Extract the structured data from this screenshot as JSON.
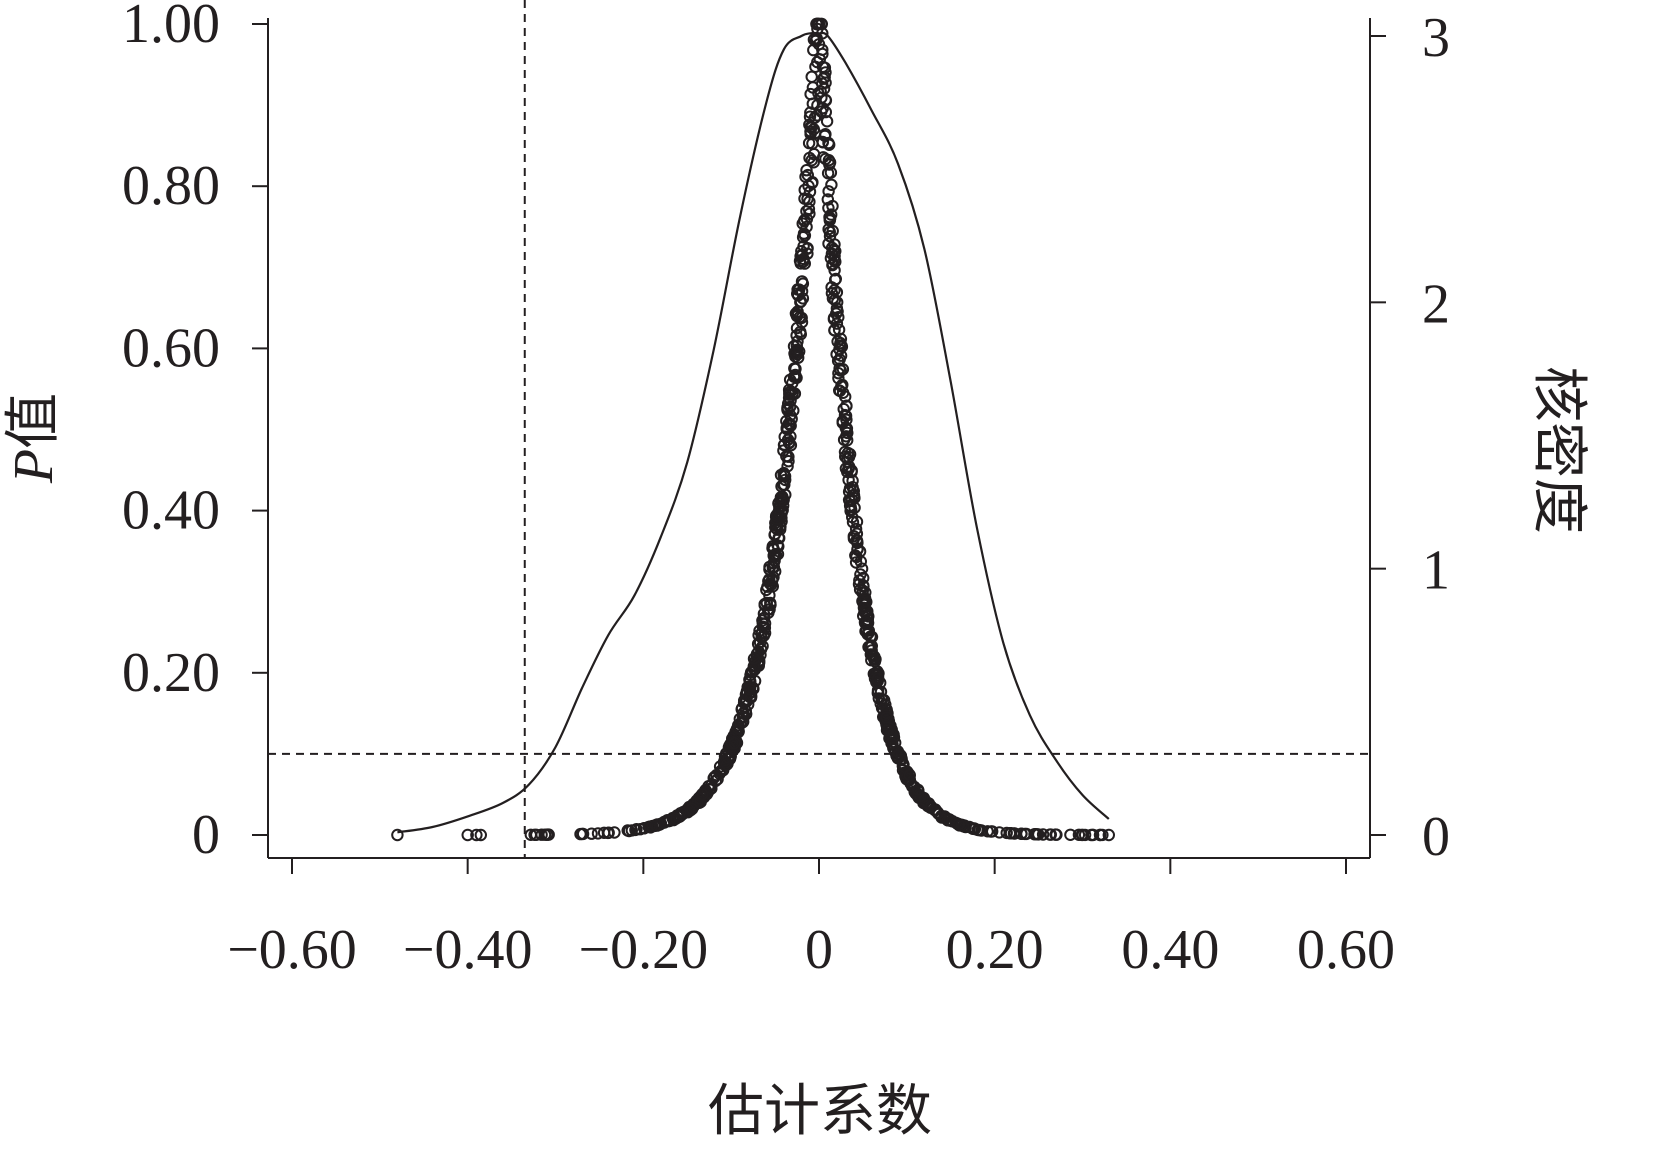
{
  "chart_data": {
    "type": "scatter",
    "xlabel": "估计系数",
    "ylabel_left": "P值",
    "ylabel_left_prefix": "P",
    "ylabel_left_suffix": "值",
    "ylabel_right": "核密度",
    "xlim": [
      -0.625,
      0.625
    ],
    "ylim_left": [
      -0.025,
      1.025
    ],
    "ylim_right": [
      -0.077,
      3.077
    ],
    "x_ticks": [
      -0.6,
      -0.4,
      -0.2,
      0,
      0.2,
      0.4,
      0.6
    ],
    "x_tick_labels": [
      "−0.60",
      "−0.40",
      "−0.20",
      "0",
      "0.20",
      "0.40",
      "0.60"
    ],
    "y_left_ticks": [
      0,
      0.2,
      0.4,
      0.6,
      0.8,
      1.0
    ],
    "y_left_tick_labels": [
      "0",
      "0.20",
      "0.40",
      "0.60",
      "0.80",
      "1.00"
    ],
    "y_right_ticks": [
      0,
      1,
      2,
      3
    ],
    "y_right_tick_labels": [
      "0",
      "1",
      "2",
      "3"
    ],
    "reference_lines": {
      "vertical_x": -0.335,
      "horizontal_p": 0.1
    },
    "series": [
      {
        "kind": "kde",
        "axis": "right",
        "x": [
          -0.48,
          -0.44,
          -0.4,
          -0.36,
          -0.33,
          -0.3,
          -0.27,
          -0.24,
          -0.21,
          -0.18,
          -0.15,
          -0.12,
          -0.09,
          -0.06,
          -0.04,
          -0.02,
          -0.01,
          0.0,
          0.01,
          0.03,
          0.06,
          0.09,
          0.12,
          0.15,
          0.18,
          0.21,
          0.24,
          0.27,
          0.3,
          0.33
        ],
        "y": [
          0.01,
          0.03,
          0.07,
          0.12,
          0.19,
          0.33,
          0.55,
          0.75,
          0.9,
          1.12,
          1.4,
          1.82,
          2.32,
          2.75,
          2.95,
          3.0,
          3.01,
          3.01,
          3.0,
          2.9,
          2.72,
          2.52,
          2.2,
          1.7,
          1.15,
          0.72,
          0.45,
          0.28,
          0.15,
          0.06
        ]
      },
      {
        "kind": "points",
        "axis": "left",
        "description_generator": "volcano: p = exp(-(|b|/scale)^1.1), scale 0.048 (b<0) / 0.042 (b>0)",
        "n_points": 900
      }
    ]
  }
}
